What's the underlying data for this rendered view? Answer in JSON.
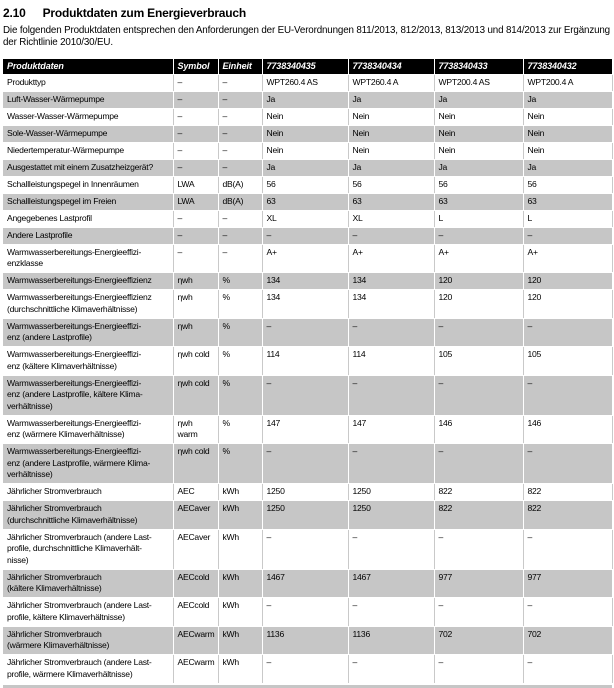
{
  "page": {
    "section_number": "2.10",
    "section_title": "Produktdaten zum Energieverbrauch",
    "intro": "Die folgenden Produktdaten entsprechen den Anforderungen der EU-Verordnungen 811/2013, 812/2013, 813/2013 und 814/2013 zur Ergänzung der Richtlinie 2010/30/EU."
  },
  "colors": {
    "header_bg": "#000000",
    "header_text": "#ffffff",
    "alt_row_bg": "#c6c6c6"
  },
  "table": {
    "columns": [
      "Produktdaten",
      "Symbol",
      "Einheit",
      "7738340435",
      "7738340434",
      "7738340433",
      "7738340432"
    ],
    "rows": [
      {
        "label": "Produkttyp",
        "symbol": "–",
        "unit": "–",
        "values": [
          "WPT260.4 AS",
          "WPT260.4 A",
          "WPT200.4 AS",
          "WPT200.4 A"
        ]
      },
      {
        "label": "Luft-Wasser-Wärmepumpe",
        "symbol": "–",
        "unit": "–",
        "values": [
          "Ja",
          "Ja",
          "Ja",
          "Ja"
        ]
      },
      {
        "label": "Wasser-Wasser-Wärmepumpe",
        "symbol": "–",
        "unit": "–",
        "values": [
          "Nein",
          "Nein",
          "Nein",
          "Nein"
        ]
      },
      {
        "label": "Sole-Wasser-Wärmepumpe",
        "symbol": "–",
        "unit": "–",
        "values": [
          "Nein",
          "Nein",
          "Nein",
          "Nein"
        ]
      },
      {
        "label": "Niedertemperatur-Wärmepumpe",
        "symbol": "–",
        "unit": "–",
        "values": [
          "Nein",
          "Nein",
          "Nein",
          "Nein"
        ]
      },
      {
        "label": "Ausgestattet mit einem Zusatzheizgerät?",
        "symbol": "–",
        "unit": "–",
        "values": [
          "Ja",
          "Ja",
          "Ja",
          "Ja"
        ]
      },
      {
        "label": "Schallleistungspegel in Innenräumen",
        "symbol": "LWA",
        "unit": "dB(A)",
        "values": [
          "56",
          "56",
          "56",
          "56"
        ]
      },
      {
        "label": "Schallleistungspegel im Freien",
        "symbol": "LWA",
        "unit": "dB(A)",
        "values": [
          "63",
          "63",
          "63",
          "63"
        ]
      },
      {
        "label": "Angegebenes Lastprofil",
        "symbol": "–",
        "unit": "–",
        "values": [
          "XL",
          "XL",
          "L",
          "L"
        ]
      },
      {
        "label": "Andere Lastprofile",
        "symbol": "–",
        "unit": "–",
        "values": [
          "–",
          "–",
          "–",
          "–"
        ]
      },
      {
        "label": "Warmwasserbereitungs-Energieeffizi-\nenzklasse",
        "symbol": "–",
        "unit": "–",
        "values": [
          "A+",
          "A+",
          "A+",
          "A+"
        ]
      },
      {
        "label": "Warmwasserbereitungs-Energieeffizienz",
        "symbol": "ηwh",
        "unit": "%",
        "values": [
          "134",
          "134",
          "120",
          "120"
        ]
      },
      {
        "label": "Warmwasserbereitungs-Energieeffizienz\n(durchschnittliche Klimaverhältnisse)",
        "symbol": "ηwh",
        "unit": "%",
        "values": [
          "134",
          "134",
          "120",
          "120"
        ]
      },
      {
        "label": "Warmwasserbereitungs-Energieeffizi-\nenz (andere Lastprofile)",
        "symbol": "ηwh",
        "unit": "%",
        "values": [
          "–",
          "–",
          "–",
          "–"
        ]
      },
      {
        "label": "Warmwasserbereitungs-Energieeffizi-\nenz (kältere Klimaverhältnisse)",
        "symbol": "ηwh cold",
        "unit": "%",
        "values": [
          "114",
          "114",
          "105",
          "105"
        ]
      },
      {
        "label": "Warmwasserbereitungs-Energieeffizi-\nenz (andere Lastprofile, kältere Klima-\nverhältnisse)",
        "symbol": "ηwh cold",
        "unit": "%",
        "values": [
          "–",
          "–",
          "–",
          "–"
        ]
      },
      {
        "label": "Warmwasserbereitungs-Energieeffizi-\nenz (wärmere Klimaverhältnisse)",
        "symbol": "ηwh warm",
        "unit": "%",
        "values": [
          "147",
          "147",
          "146",
          "146"
        ]
      },
      {
        "label": "Warmwasserbereitungs-Energieeffizi-\nenz (andere Lastprofile, wärmere Klima-\nverhältnisse)",
        "symbol": "ηwh cold",
        "unit": "%",
        "values": [
          "–",
          "–",
          "–",
          "–"
        ]
      },
      {
        "label": "Jährlicher Stromverbrauch",
        "symbol": "AEC",
        "unit": "kWh",
        "values": [
          "1250",
          "1250",
          "822",
          "822"
        ]
      },
      {
        "label": "Jährlicher Stromverbrauch\n(durchschnittliche Klimaverhältnisse)",
        "symbol": "AECaver",
        "unit": "kWh",
        "values": [
          "1250",
          "1250",
          "822",
          "822"
        ]
      },
      {
        "label": "Jährlicher Stromverbrauch (andere Last-\nprofile, durchschnittliche Klimaverhält-\nnisse)",
        "symbol": "AECaver",
        "unit": "kWh",
        "values": [
          "–",
          "–",
          "–",
          "–"
        ]
      },
      {
        "label": "Jährlicher Stromverbrauch\n(kältere Klimaverhältnisse)",
        "symbol": "AECcold",
        "unit": "kWh",
        "values": [
          "1467",
          "1467",
          "977",
          "977"
        ]
      },
      {
        "label": "Jährlicher Stromverbrauch (andere Last-\nprofile, kältere Klimaverhältnisse)",
        "symbol": "AECcold",
        "unit": "kWh",
        "values": [
          "–",
          "–",
          "–",
          "–"
        ]
      },
      {
        "label": "Jährlicher Stromverbrauch\n(wärmere Klimaverhältnisse)",
        "symbol": "AECwarm",
        "unit": "kWh",
        "values": [
          "1136",
          "1136",
          "702",
          "702"
        ]
      },
      {
        "label": "Jährlicher Stromverbrauch (andere Last-\nprofile, wärmere Klimaverhältnisse)",
        "symbol": "AECwarm",
        "unit": "kWh",
        "values": [
          "–",
          "–",
          "–",
          "–"
        ]
      }
    ]
  }
}
